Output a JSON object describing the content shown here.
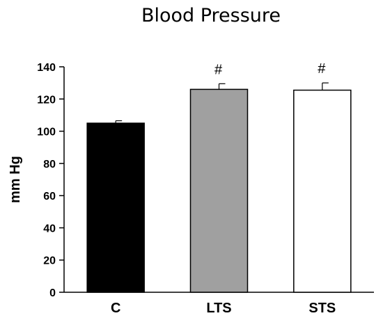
{
  "chart_data": {
    "type": "bar",
    "title": "Blood Pressure",
    "xlabel": "",
    "ylabel": "mm Hg",
    "categories": [
      "C",
      "LTS",
      "STS"
    ],
    "values": [
      105,
      126,
      125.5
    ],
    "errors": [
      1.5,
      3.5,
      4.5
    ],
    "annotations": [
      "",
      "#",
      "#"
    ],
    "bar_colors": [
      "#000000",
      "#a0a0a0",
      "#ffffff"
    ],
    "ylim": [
      0,
      140
    ],
    "yticks": [
      "0",
      "20",
      "40",
      "60",
      "80",
      "100",
      "120",
      "140"
    ],
    "grid": false,
    "legend": "none"
  }
}
